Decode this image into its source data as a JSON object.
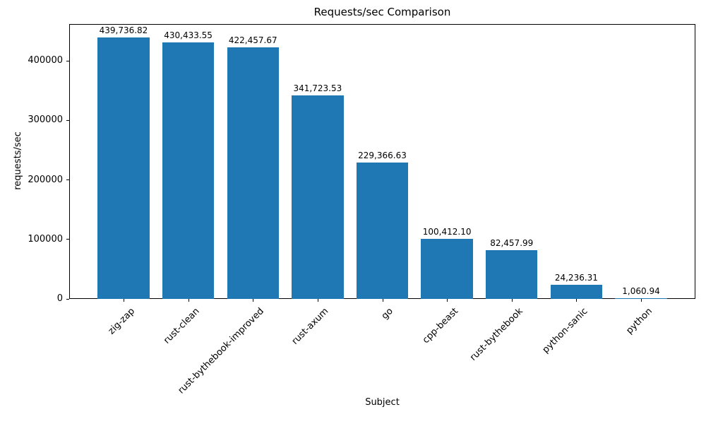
{
  "figure": {
    "background": "#ffffff",
    "text_color": "#000000",
    "spine_color": "#000000"
  },
  "chart_data": {
    "type": "bar",
    "title": "Requests/sec Comparison",
    "xlabel": "Subject",
    "ylabel": "requests/sec",
    "categories": [
      "zig-zap",
      "rust-clean",
      "rust-bythebook-improved",
      "rust-axum",
      "go",
      "cpp-beast",
      "rust-bythebook",
      "python-sanic",
      "python"
    ],
    "values": [
      439736.82,
      430433.55,
      422457.67,
      341723.53,
      229366.63,
      100412.1,
      82457.99,
      24236.31,
      1060.94
    ],
    "value_labels": [
      "439,736.82",
      "430,433.55",
      "422,457.67",
      "341,723.53",
      "229,366.63",
      "100,412.10",
      "82,457.99",
      "24,236.31",
      "1,060.94"
    ],
    "bar_color": "#1f77b4",
    "ylim": [
      0,
      461724
    ],
    "yticks": [
      0,
      100000,
      200000,
      300000,
      400000
    ],
    "grid": false,
    "legend": null,
    "x_tick_rotation_deg": 45
  }
}
